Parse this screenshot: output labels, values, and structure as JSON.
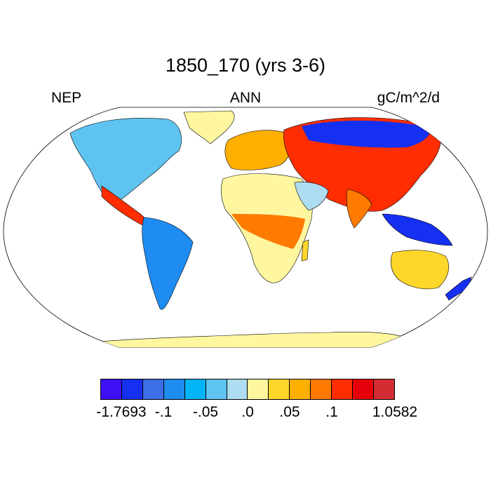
{
  "title": "1850_170 (yrs 3-6)",
  "left_label": "NEP",
  "center_label": "ANN",
  "right_label": "gC/m^2/d",
  "colorbar": {
    "colors": [
      "#3f0ff5",
      "#1530f0",
      "#3c6ee6",
      "#1e8cf0",
      "#00b4f5",
      "#5ec3f0",
      "#aedcf0",
      "#fff7a0",
      "#ffd72a",
      "#ffaf00",
      "#ff7a00",
      "#ff2d00",
      "#e6000a",
      "#d22d32"
    ],
    "tick_labels": [
      "-1.7693",
      "-.1",
      "-.05",
      ".0",
      ".05",
      ".1",
      "1.0582"
    ]
  },
  "map_colors": {
    "ocean": "#ffffff",
    "land_neutral": "#fff7a0",
    "outline": "#000000"
  }
}
